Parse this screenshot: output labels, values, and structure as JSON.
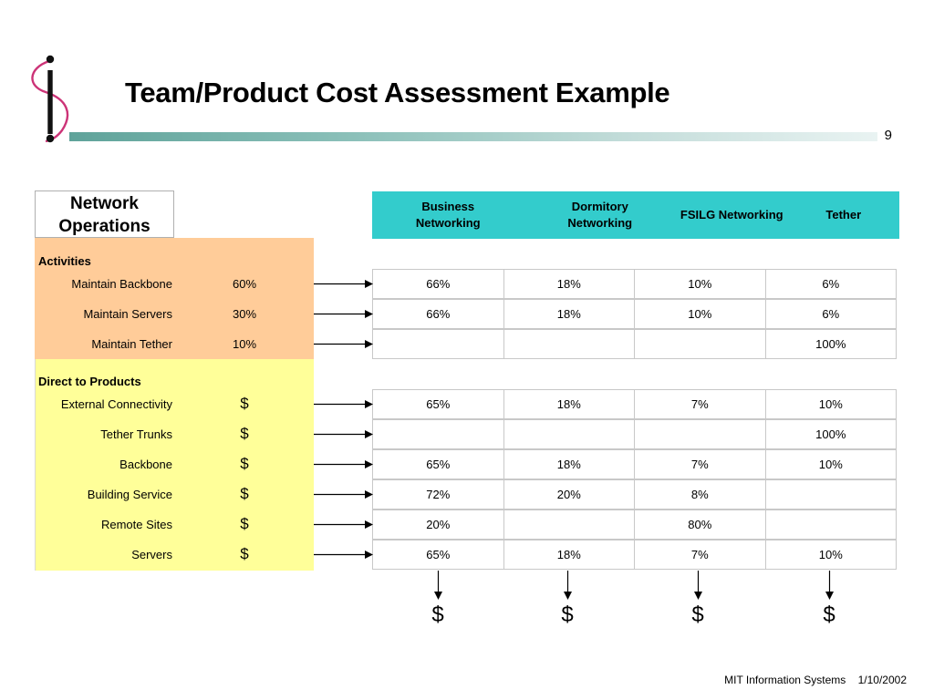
{
  "slide": {
    "title": "Team/Product Cost Assessment Example",
    "page_number": "9",
    "footer_org": "MIT Information Systems",
    "footer_date": "1/10/2002"
  },
  "left_header": [
    "Network",
    "Operations"
  ],
  "products": [
    "Business Networking",
    "Dormitory Networking",
    "FSILG Networking",
    "Tether"
  ],
  "sections": {
    "activities_label": "Activities",
    "direct_label": "Direct to Products"
  },
  "activities": [
    {
      "label": "Maintain Backbone",
      "value": "60%",
      "alloc": [
        "66%",
        "18%",
        "10%",
        "6%"
      ]
    },
    {
      "label": "Maintain Servers",
      "value": "30%",
      "alloc": [
        "66%",
        "18%",
        "10%",
        "6%"
      ]
    },
    {
      "label": "Maintain Tether",
      "value": "10%",
      "alloc": [
        "",
        "",
        "",
        "100%"
      ]
    }
  ],
  "direct": [
    {
      "label": "External Connectivity",
      "value": "$",
      "alloc": [
        "65%",
        "18%",
        "7%",
        "10%"
      ]
    },
    {
      "label": "Tether Trunks",
      "value": "$",
      "alloc": [
        "",
        "",
        "",
        "100%"
      ]
    },
    {
      "label": "Backbone",
      "value": "$",
      "alloc": [
        "65%",
        "18%",
        "7%",
        "10%"
      ]
    },
    {
      "label": "Building Service",
      "value": "$",
      "alloc": [
        "72%",
        "20%",
        "8%",
        ""
      ]
    },
    {
      "label": "Remote Sites",
      "value": "$",
      "alloc": [
        "20%",
        "",
        "80%",
        ""
      ]
    },
    {
      "label": "Servers",
      "value": "$",
      "alloc": [
        "65%",
        "18%",
        "7%",
        "10%"
      ]
    }
  ],
  "totals": [
    "$",
    "$",
    "$",
    "$"
  ],
  "colors": {
    "activities_bg": "#ffcc99",
    "direct_bg": "#ffff99",
    "product_header_bg": "#33cccc",
    "logo_curve": "#cc3377"
  }
}
